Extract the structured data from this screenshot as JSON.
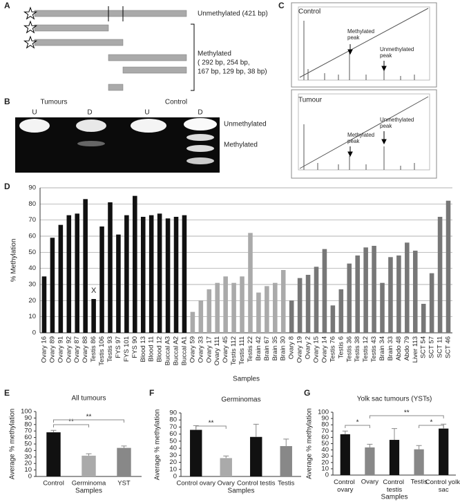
{
  "panel_labels": [
    "A",
    "B",
    "C",
    "D",
    "E",
    "F",
    "G"
  ],
  "panel_a": {
    "unmethylated": "Unmethylated (421 bp)",
    "methylated": "Methylated",
    "sizes_1": "( 292 bp, 254 bp,",
    "sizes_2": "167 bp, 129 bp, 38 bp)"
  },
  "panel_b": {
    "group_1": "Tumours",
    "group_2": "Control",
    "lanes": [
      "U",
      "D",
      "U",
      "D"
    ],
    "band_1": "Unmethylated",
    "band_2": "Methylated"
  },
  "panel_c": {
    "trace_1": "Control",
    "trace_2": "Tumour",
    "peak_m_1": "Methylated peak",
    "peak_u_1": "Unmethylated peak",
    "peak_m_2": "Methylated peak",
    "peak_u_2": "Unmethylated peak"
  },
  "chart_data": [
    {
      "type": "bar",
      "y_label": "% Methylation",
      "x_label": "Samples",
      "ylim": [
        0,
        90
      ],
      "yticks": [
        0,
        10,
        20,
        30,
        40,
        50,
        60,
        70,
        80,
        90
      ],
      "grid": true,
      "categories": [
        "Ovary 16",
        "Ovary 89",
        "Ovary 91",
        "Ovary 92",
        "Ovary 87",
        "Ovary 88",
        "Testis 86",
        "Testis 106",
        "Testis 93",
        "FYS 97",
        "FYS 101",
        "FYS 90",
        "Blood 13",
        "Blood 11",
        "Blood 12",
        "Buccal A3",
        "Buccal A2",
        "Buccal A1",
        "Ovary 59",
        "Ovary 33",
        "Ovary 17",
        "Ovary 111",
        "Ovary 45",
        "Testis 112",
        "Testis 111",
        "Testis 22",
        "Brain 42",
        "Brain 67",
        "Brain 35",
        "Brain 30",
        "Ovary 8",
        "Ovary 19",
        "Ovary 2",
        "Ovary 15",
        "Ovary 14",
        "Testis 76",
        "Testis 6",
        "Testis 36",
        "Testis 38",
        "Testis 12",
        "Testis 43",
        "Brain 34",
        "Brain 33",
        "Abdo 48",
        "Abdo 79",
        "Liver 113",
        "SCT 54",
        "SCT 57",
        "SCT 11",
        "SCT 46"
      ],
      "values": [
        35,
        59,
        67,
        73,
        74,
        83,
        21,
        66,
        81,
        61,
        73,
        85,
        72,
        73,
        74,
        71,
        72,
        73,
        13,
        20,
        27,
        31,
        35,
        31,
        35,
        62,
        25,
        29,
        31,
        39,
        20,
        34,
        36,
        41,
        52,
        17,
        27,
        43,
        48,
        53,
        54,
        31,
        47,
        48,
        56,
        51,
        18,
        37,
        72,
        82
      ],
      "colors": [
        "#111",
        "#111",
        "#111",
        "#111",
        "#111",
        "#111",
        "#111",
        "#111",
        "#111",
        "#111",
        "#111",
        "#111",
        "#111",
        "#111",
        "#111",
        "#111",
        "#111",
        "#111",
        "#aaa",
        "#aaa",
        "#aaa",
        "#aaa",
        "#aaa",
        "#aaa",
        "#aaa",
        "#aaa",
        "#aaa",
        "#aaa",
        "#aaa",
        "#aaa",
        "#777",
        "#777",
        "#777",
        "#777",
        "#777",
        "#777",
        "#777",
        "#777",
        "#777",
        "#777",
        "#777",
        "#777",
        "#777",
        "#777",
        "#777",
        "#777",
        "#777",
        "#777",
        "#777",
        "#777"
      ],
      "annotations": [
        {
          "text": "X",
          "at": "Testis 86"
        }
      ]
    },
    {
      "type": "bar",
      "title": "All tumours",
      "y_label": "Average % methylation",
      "x_label": "Samples",
      "ylim": [
        0,
        100
      ],
      "yticks": [
        0,
        10,
        20,
        30,
        40,
        50,
        60,
        70,
        80,
        90,
        100
      ],
      "grid": false,
      "categories": [
        "Control",
        "Germinoma",
        "YST"
      ],
      "values": [
        68,
        32,
        44
      ],
      "errors": [
        3,
        3,
        3
      ],
      "colors": [
        "#111",
        "#aaa",
        "#888"
      ],
      "significance": [
        {
          "from": "Control",
          "to": "Germinoma",
          "label": "**"
        },
        {
          "from": "Control",
          "to": "YST",
          "label": "**"
        }
      ]
    },
    {
      "type": "bar",
      "title": "Germinomas",
      "y_label": "Average % methylation",
      "x_label": "Samples",
      "ylim": [
        0,
        90
      ],
      "yticks": [
        0,
        10,
        20,
        30,
        40,
        50,
        60,
        70,
        80,
        90
      ],
      "grid": false,
      "categories": [
        "Control ovary",
        "Ovary",
        "Control testis",
        "Testis"
      ],
      "values": [
        66,
        26,
        56,
        43
      ],
      "errors": [
        6,
        3,
        18,
        10
      ],
      "colors": [
        "#111",
        "#aaa",
        "#111",
        "#888"
      ],
      "significance": [
        {
          "from": "Control ovary",
          "to": "Ovary",
          "label": "**"
        }
      ]
    },
    {
      "type": "bar",
      "title": "Yolk sac tumours (YSTs)",
      "y_label": "Average % methylation",
      "x_label": "Samples",
      "ylim": [
        0,
        100
      ],
      "yticks": [
        0,
        10,
        20,
        30,
        40,
        50,
        60,
        70,
        80,
        90,
        100
      ],
      "grid": false,
      "categories": [
        "Control ovary",
        "Ovary",
        "Control testis",
        "Testis",
        "Control yolk sac"
      ],
      "values": [
        65,
        44,
        56,
        41,
        74
      ],
      "errors": [
        5,
        5,
        18,
        6,
        7
      ],
      "colors": [
        "#111",
        "#888",
        "#111",
        "#888",
        "#111"
      ],
      "significance": [
        {
          "from": "Control ovary",
          "to": "Ovary",
          "label": "*"
        },
        {
          "from": "Ovary",
          "to": "Control yolk sac",
          "label": "**"
        },
        {
          "from": "Testis",
          "to": "Control yolk sac",
          "label": "*"
        }
      ]
    }
  ]
}
